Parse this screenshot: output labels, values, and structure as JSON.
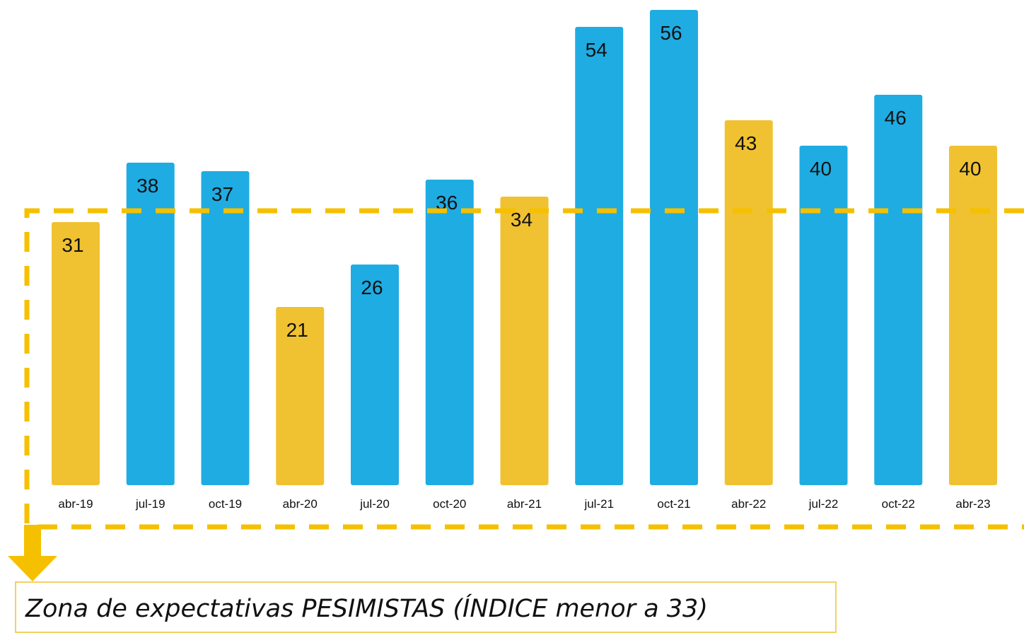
{
  "chart_data": {
    "type": "bar",
    "categories": [
      "abr-19",
      "jul-19",
      "oct-19",
      "abr-20",
      "jul-20",
      "oct-20",
      "abr-21",
      "jul-21",
      "oct-21",
      "abr-22",
      "jul-22",
      "oct-22",
      "abr-23"
    ],
    "values": [
      31,
      38,
      37,
      21,
      26,
      36,
      34,
      54,
      56,
      43,
      40,
      46,
      40
    ],
    "colors": [
      "#F0C232",
      "#1FACE2",
      "#1FACE2",
      "#F0C232",
      "#1FACE2",
      "#1FACE2",
      "#F0C232",
      "#1FACE2",
      "#1FACE2",
      "#F0C232",
      "#1FACE2",
      "#1FACE2",
      "#F0C232"
    ],
    "ylim": [
      0,
      57
    ],
    "grid": false,
    "annotation": "Zona de expectativas PESIMISTAS (ÍNDICE menor a 33)"
  }
}
